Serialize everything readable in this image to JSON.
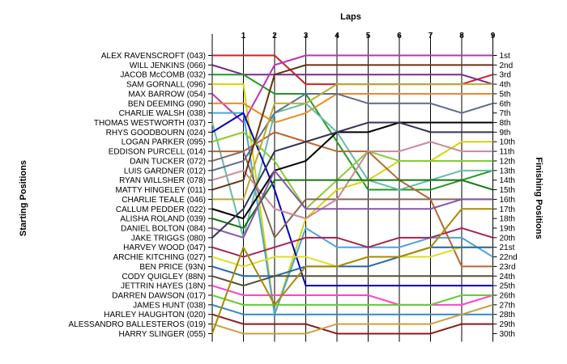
{
  "chart_data": {
    "type": "line",
    "title": "Laps",
    "ylabel_left": "Starting Positions",
    "ylabel_right": "Finishing Positions",
    "laps": [
      "1",
      "2",
      "3",
      "4",
      "5",
      "6",
      "7",
      "8",
      "9"
    ],
    "start_labels": [
      "ALEX RAVENSCROFT (043)",
      "WILL JENKINS (066)",
      "JACOB McCOMB (032)",
      "SAM GORNALL (096)",
      "MAX BARROW (054)",
      "BEN DEEMING (090)",
      "CHARLIE WALSH (038)",
      "THOMAS WESTWORTH (037)",
      "RHYS GOODBOURN (024)",
      "LOGAN PARKER (095)",
      "EDDISON PURCELL (014)",
      "DAIN TUCKER (072)",
      "LUIS GARDNER (012)",
      "RYAN WILLSHER (078)",
      "MATTY HINGELEY (011)",
      "CHARLIE TEALE (046)",
      "CALLUM PEDDER (022)",
      "ALISHA ROLAND (039)",
      "DANIEL BOLTON (084)",
      "JAKE TRIGGS (080)",
      "HARVEY WOOD (047)",
      "ARCHIE KITCHING (027)",
      "BEN PRICE (93N)",
      "CODY QUIGLEY (88N)",
      "JETTRIN HAYES (18N)",
      "DARREN DAWSON (017)",
      "JAMES HUNT (038)",
      "HARLEY HAUGHTON (020)",
      "ALESSANDRO BALLESTEROS (019)",
      "HARRY SLINGER (055)"
    ],
    "finish_labels": [
      "1st",
      "2nd",
      "3rd",
      "4th",
      "5th",
      "6th",
      "7th",
      "8th",
      "9th",
      "10th",
      "11th",
      "12th",
      "13th",
      "14th",
      "15th",
      "16th",
      "17th",
      "18th",
      "19th",
      "20th",
      "21st",
      "22nd",
      "23rd",
      "24th",
      "25th",
      "26th",
      "27th",
      "28th",
      "29th",
      "30th"
    ],
    "series": [
      {
        "color": "#cc2222",
        "positions": [
          1,
          1,
          4,
          4,
          4,
          4,
          4,
          4,
          3
        ]
      },
      {
        "color": "#7a2a8a",
        "positions": [
          3,
          3,
          3,
          3,
          3,
          3,
          3,
          3,
          4
        ]
      },
      {
        "color": "#229922",
        "positions": [
          3,
          5,
          5,
          10,
          15,
          15,
          15,
          14,
          13
        ]
      },
      {
        "color": "#d4d400",
        "positions": [
          4,
          28,
          18,
          15,
          14,
          12,
          12,
          10,
          10
        ]
      },
      {
        "color": "#bb33bb",
        "positions": [
          8,
          2,
          1,
          1,
          1,
          1,
          1,
          1,
          1
        ]
      },
      {
        "color": "#ee8822",
        "positions": [
          6,
          8,
          7,
          5,
          5,
          5,
          5,
          5,
          5
        ]
      },
      {
        "color": "#4aa3df",
        "positions": [
          7,
          28,
          19,
          21,
          21,
          21,
          20,
          20,
          22
        ]
      },
      {
        "color": "#66bbaa",
        "positions": [
          20,
          7,
          6,
          9,
          14,
          15,
          14,
          13,
          13
        ]
      },
      {
        "color": "#0000bb",
        "positions": [
          7,
          15,
          25,
          25,
          25,
          25,
          25,
          25,
          25
        ]
      },
      {
        "color": "#88cc33",
        "positions": [
          9,
          12,
          17,
          14,
          11,
          12,
          12,
          12,
          12
        ]
      },
      {
        "color": "#bb6633",
        "positions": [
          11,
          9,
          10,
          11,
          11,
          14,
          16,
          23,
          23
        ]
      },
      {
        "color": "#886655",
        "positions": [
          11,
          20,
          16,
          16,
          16,
          16,
          16,
          16,
          16
        ]
      },
      {
        "color": "#5a6e8a",
        "positions": [
          12,
          7,
          5,
          5,
          6,
          6,
          6,
          7,
          6
        ]
      },
      {
        "color": "#cc8899",
        "positions": [
          13,
          17,
          18,
          16,
          11,
          11,
          10,
          11,
          11
        ]
      },
      {
        "color": "#663311",
        "positions": [
          14,
          3,
          2,
          2,
          2,
          2,
          2,
          2,
          2
        ]
      },
      {
        "color": "#bbaa33",
        "positions": [
          16,
          6,
          6,
          4,
          4,
          4,
          4,
          4,
          4
        ]
      },
      {
        "color": "#000000",
        "positions": [
          18,
          13,
          12,
          9,
          9,
          8,
          8,
          8,
          8
        ]
      },
      {
        "color": "#117711",
        "positions": [
          19,
          14,
          14,
          14,
          14,
          14,
          14,
          14,
          15
        ]
      },
      {
        "color": "#8855aa",
        "positions": [
          20,
          13,
          17,
          17,
          17,
          17,
          17,
          16,
          16
        ]
      },
      {
        "color": "#333355",
        "positions": [
          17,
          11,
          10,
          9,
          8,
          8,
          9,
          9,
          9
        ]
      },
      {
        "color": "#aa2255",
        "positions": [
          22,
          21,
          20,
          20,
          21,
          20,
          20,
          19,
          20
        ]
      },
      {
        "color": "#dddd22",
        "positions": [
          23,
          22,
          22,
          23,
          22,
          22,
          22,
          21,
          21
        ]
      },
      {
        "color": "#2266aa",
        "positions": [
          24,
          24,
          23,
          23,
          23,
          22,
          21,
          21,
          21
        ]
      },
      {
        "color": "#555533",
        "positions": [
          25,
          24,
          24,
          24,
          24,
          24,
          24,
          24,
          24
        ]
      },
      {
        "color": "#ff44cc",
        "positions": [
          26,
          26,
          26,
          26,
          26,
          27,
          27,
          27,
          26
        ]
      },
      {
        "color": "#66cc33",
        "positions": [
          27,
          27,
          27,
          27,
          27,
          27,
          27,
          26,
          26
        ]
      },
      {
        "color": "#3388cc",
        "positions": [
          28,
          28,
          28,
          28,
          28,
          28,
          28,
          28,
          28
        ]
      },
      {
        "color": "#8b1a1a",
        "positions": [
          29,
          29,
          29,
          30,
          30,
          30,
          30,
          29,
          29
        ]
      },
      {
        "color": "#c8a040",
        "positions": [
          30,
          30,
          30,
          29,
          29,
          29,
          29,
          28,
          27
        ]
      },
      {
        "color": "#aa8800",
        "positions": [
          21,
          27,
          23,
          23,
          22,
          22,
          21,
          17,
          17
        ]
      }
    ]
  }
}
